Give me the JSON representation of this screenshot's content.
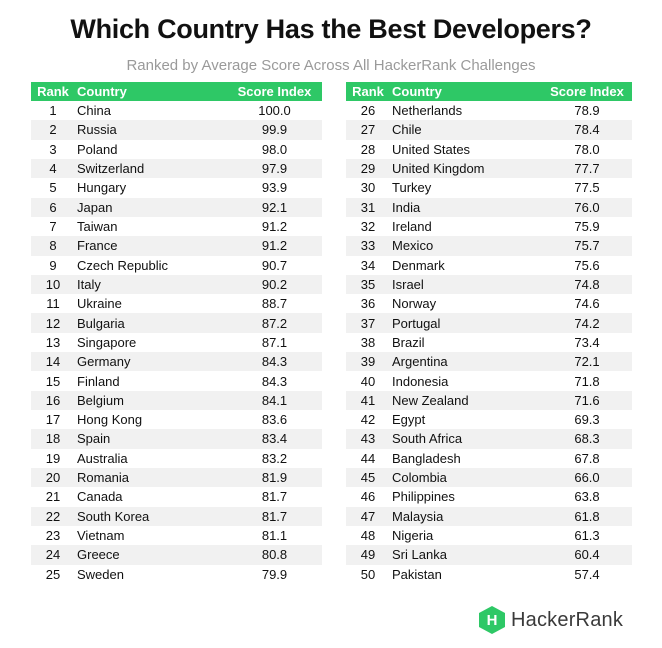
{
  "chart_data": {
    "type": "table",
    "title": "Which Country Has the Best Developers?",
    "subtitle": "Ranked by Average Score Across All HackerRank Challenges",
    "columns": [
      "Rank",
      "Country",
      "Score Index"
    ],
    "rows": [
      {
        "rank": "1",
        "country": "China",
        "score": "100.0"
      },
      {
        "rank": "2",
        "country": "Russia",
        "score": "99.9"
      },
      {
        "rank": "3",
        "country": "Poland",
        "score": "98.0"
      },
      {
        "rank": "4",
        "country": "Switzerland",
        "score": "97.9"
      },
      {
        "rank": "5",
        "country": "Hungary",
        "score": "93.9"
      },
      {
        "rank": "6",
        "country": "Japan",
        "score": "92.1"
      },
      {
        "rank": "7",
        "country": "Taiwan",
        "score": "91.2"
      },
      {
        "rank": "8",
        "country": "France",
        "score": "91.2"
      },
      {
        "rank": "9",
        "country": "Czech Republic",
        "score": "90.7"
      },
      {
        "rank": "10",
        "country": "Italy",
        "score": "90.2"
      },
      {
        "rank": "11",
        "country": "Ukraine",
        "score": "88.7"
      },
      {
        "rank": "12",
        "country": "Bulgaria",
        "score": "87.2"
      },
      {
        "rank": "13",
        "country": "Singapore",
        "score": "87.1"
      },
      {
        "rank": "14",
        "country": "Germany",
        "score": "84.3"
      },
      {
        "rank": "15",
        "country": "Finland",
        "score": "84.3"
      },
      {
        "rank": "16",
        "country": "Belgium",
        "score": "84.1"
      },
      {
        "rank": "17",
        "country": "Hong Kong",
        "score": "83.6"
      },
      {
        "rank": "18",
        "country": "Spain",
        "score": "83.4"
      },
      {
        "rank": "19",
        "country": "Australia",
        "score": "83.2"
      },
      {
        "rank": "20",
        "country": "Romania",
        "score": "81.9"
      },
      {
        "rank": "21",
        "country": "Canada",
        "score": "81.7"
      },
      {
        "rank": "22",
        "country": "South Korea",
        "score": "81.7"
      },
      {
        "rank": "23",
        "country": "Vietnam",
        "score": "81.1"
      },
      {
        "rank": "24",
        "country": "Greece",
        "score": "80.8"
      },
      {
        "rank": "25",
        "country": "Sweden",
        "score": "79.9"
      },
      {
        "rank": "26",
        "country": "Netherlands",
        "score": "78.9"
      },
      {
        "rank": "27",
        "country": "Chile",
        "score": "78.4"
      },
      {
        "rank": "28",
        "country": "United States",
        "score": "78.0"
      },
      {
        "rank": "29",
        "country": "United Kingdom",
        "score": "77.7"
      },
      {
        "rank": "30",
        "country": "Turkey",
        "score": "77.5"
      },
      {
        "rank": "31",
        "country": "India",
        "score": "76.0"
      },
      {
        "rank": "32",
        "country": "Ireland",
        "score": "75.9"
      },
      {
        "rank": "33",
        "country": "Mexico",
        "score": "75.7"
      },
      {
        "rank": "34",
        "country": "Denmark",
        "score": "75.6"
      },
      {
        "rank": "35",
        "country": "Israel",
        "score": "74.8"
      },
      {
        "rank": "36",
        "country": "Norway",
        "score": "74.6"
      },
      {
        "rank": "37",
        "country": "Portugal",
        "score": "74.2"
      },
      {
        "rank": "38",
        "country": "Brazil",
        "score": "73.4"
      },
      {
        "rank": "39",
        "country": "Argentina",
        "score": "72.1"
      },
      {
        "rank": "40",
        "country": "Indonesia",
        "score": "71.8"
      },
      {
        "rank": "41",
        "country": "New Zealand",
        "score": "71.6"
      },
      {
        "rank": "42",
        "country": "Egypt",
        "score": "69.3"
      },
      {
        "rank": "43",
        "country": "South Africa",
        "score": "68.3"
      },
      {
        "rank": "44",
        "country": "Bangladesh",
        "score": "67.8"
      },
      {
        "rank": "45",
        "country": "Colombia",
        "score": "66.0"
      },
      {
        "rank": "46",
        "country": "Philippines",
        "score": "63.8"
      },
      {
        "rank": "47",
        "country": "Malaysia",
        "score": "61.8"
      },
      {
        "rank": "48",
        "country": "Nigeria",
        "score": "61.3"
      },
      {
        "rank": "49",
        "country": "Sri Lanka",
        "score": "60.4"
      },
      {
        "rank": "50",
        "country": "Pakistan",
        "score": "57.4"
      }
    ]
  },
  "brand": {
    "logo_letter": "H",
    "logo_text": "HackerRank"
  },
  "colors": {
    "accent": "#2ec866",
    "stripe": "#f1f1f1",
    "subtitle": "#9a9a9a"
  }
}
